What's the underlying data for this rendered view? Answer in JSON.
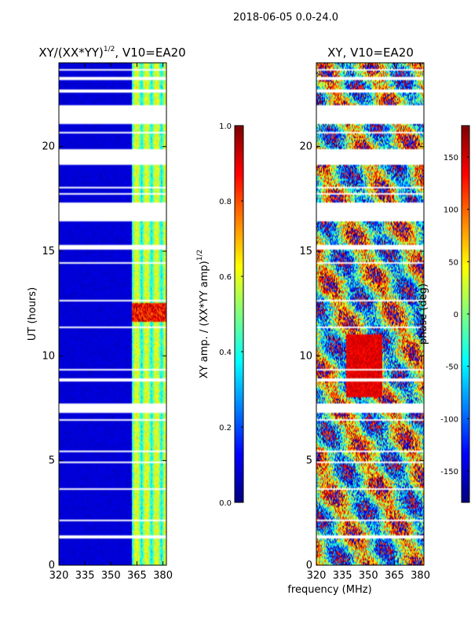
{
  "chart_data": {
    "type": "heatmap",
    "suptitle": "2018-06-05 0.0-24.0",
    "xlabel": "frequency (MHz)",
    "panels": [
      {
        "title_main": "XY/(XX*YY)",
        "title_sup": "1/2",
        "title_tail": ", V10=EA20",
        "ylabel": "UT (hours)",
        "xlim": [
          320,
          382
        ],
        "ylim": [
          0,
          24
        ],
        "xticks": [
          "320",
          "335",
          "350",
          "365",
          "380"
        ],
        "yticks": [
          "0",
          "5",
          "10",
          "15",
          "20"
        ],
        "colorbar": {
          "label_main": "XY amp. / (XX*YY amp)",
          "label_sup": "1/2",
          "range": [
            0.0,
            1.0
          ],
          "ticks": [
            "0.0",
            "0.2",
            "0.4",
            "0.6",
            "0.8",
            "1.0"
          ]
        }
      },
      {
        "title_main": "XY, V10=EA20",
        "xlim": [
          320,
          382
        ],
        "ylim": [
          0,
          24
        ],
        "xticks": [
          "320",
          "335",
          "350",
          "365",
          "380"
        ],
        "yticks": [
          "0",
          "5",
          "10",
          "15",
          "20"
        ],
        "colorbar": {
          "label_main": "phase (deg)",
          "range": [
            -180,
            180
          ],
          "ticks": [
            "-150",
            "-100",
            "-50",
            "0",
            "50",
            "100",
            "150"
          ]
        }
      }
    ],
    "flagged_ut_ranges_hours": [
      [
        21.1,
        22.0
      ],
      [
        19.1,
        19.9
      ],
      [
        16.4,
        17.3
      ],
      [
        15.1,
        15.3
      ],
      [
        7.3,
        7.7
      ],
      [
        11.3,
        11.4
      ],
      [
        9.3,
        9.4
      ],
      [
        8.8,
        8.9
      ],
      [
        6.9,
        7.0
      ],
      [
        5.4,
        5.5
      ],
      [
        3.6,
        3.7
      ],
      [
        2.1,
        2.2
      ],
      [
        1.3,
        1.45
      ],
      [
        0.5,
        0.55
      ],
      [
        23.2,
        23.3
      ],
      [
        23.6,
        23.7
      ],
      [
        22.6,
        22.7
      ],
      [
        20.6,
        20.7
      ],
      [
        18.0,
        18.05
      ],
      [
        17.7,
        17.8
      ],
      [
        14.4,
        14.45
      ],
      [
        12.6,
        12.65
      ],
      [
        10.1,
        10.15
      ],
      [
        4.9,
        4.95
      ],
      [
        3.2,
        3.25
      ]
    ]
  }
}
